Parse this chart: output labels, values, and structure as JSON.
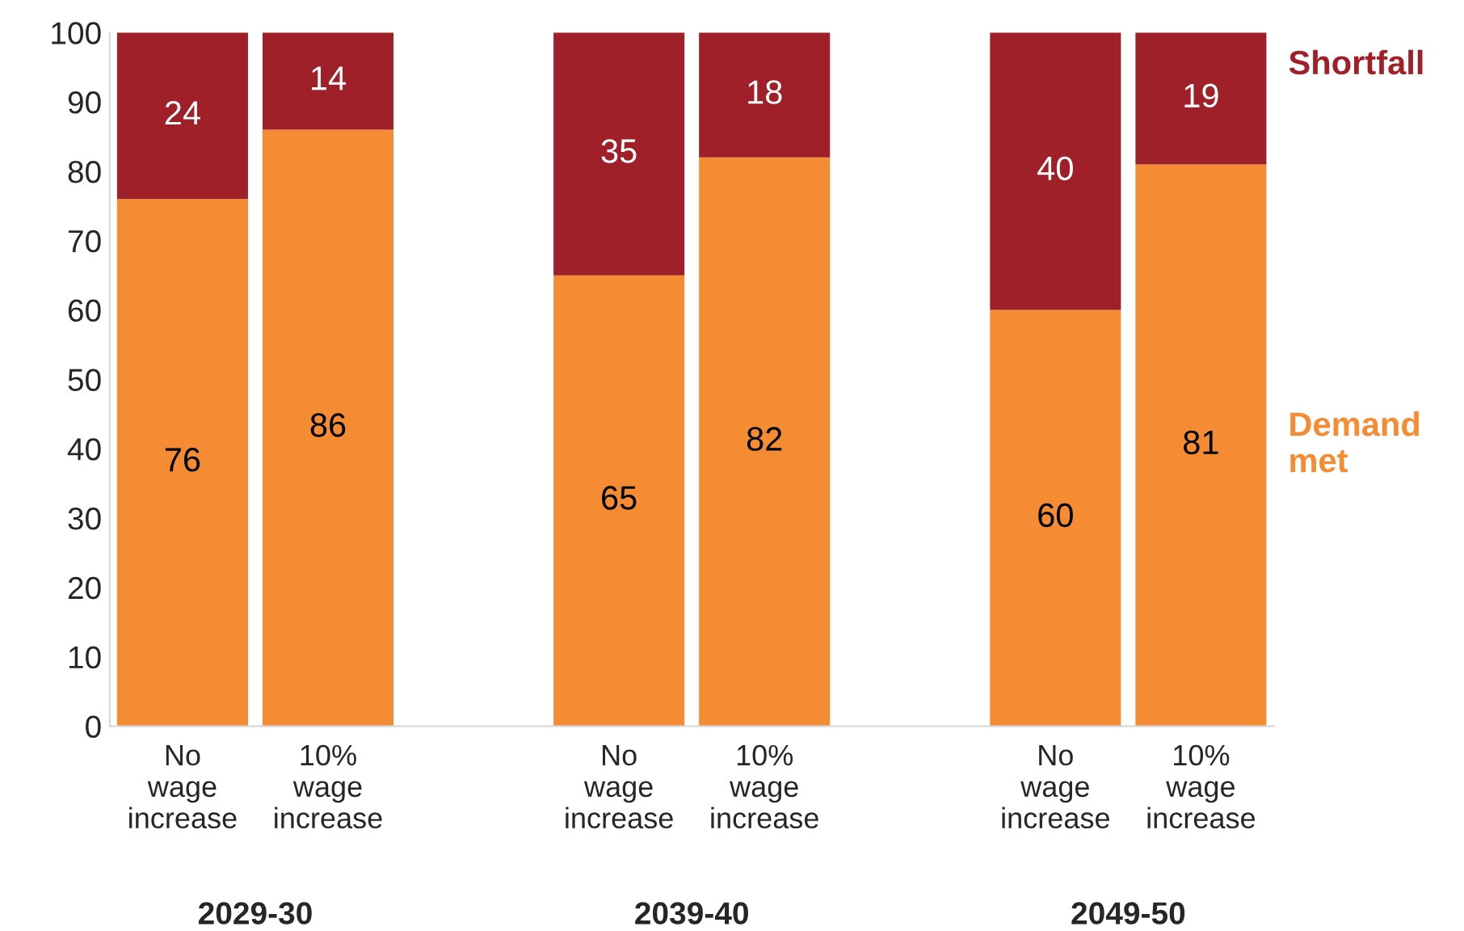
{
  "chart_data": {
    "type": "bar",
    "stacked": true,
    "data_labels": true,
    "categories": [
      "No\nwage\nincrease",
      "10%\nwage\nincrease",
      null,
      "No\nwage\nincrease",
      "10%\nwage\nincrease",
      null,
      "No\nwage\nincrease",
      "10%\nwage\nincrease"
    ],
    "series": [
      {
        "name": "Demand\nmet",
        "color": "#f58b32",
        "values": [
          76,
          86,
          null,
          65,
          82,
          null,
          60,
          81
        ]
      },
      {
        "name": "Shortfall",
        "color": "#a0202a",
        "values": [
          24,
          14,
          null,
          35,
          18,
          null,
          40,
          19
        ]
      }
    ],
    "ylim": [
      0,
      100
    ],
    "yticks": [
      0,
      10,
      20,
      30,
      40,
      50,
      60,
      70,
      80,
      90,
      100
    ],
    "grid": false,
    "legend": "right",
    "annotations": [
      "2029-30",
      "2039-40",
      "2049-50"
    ]
  }
}
